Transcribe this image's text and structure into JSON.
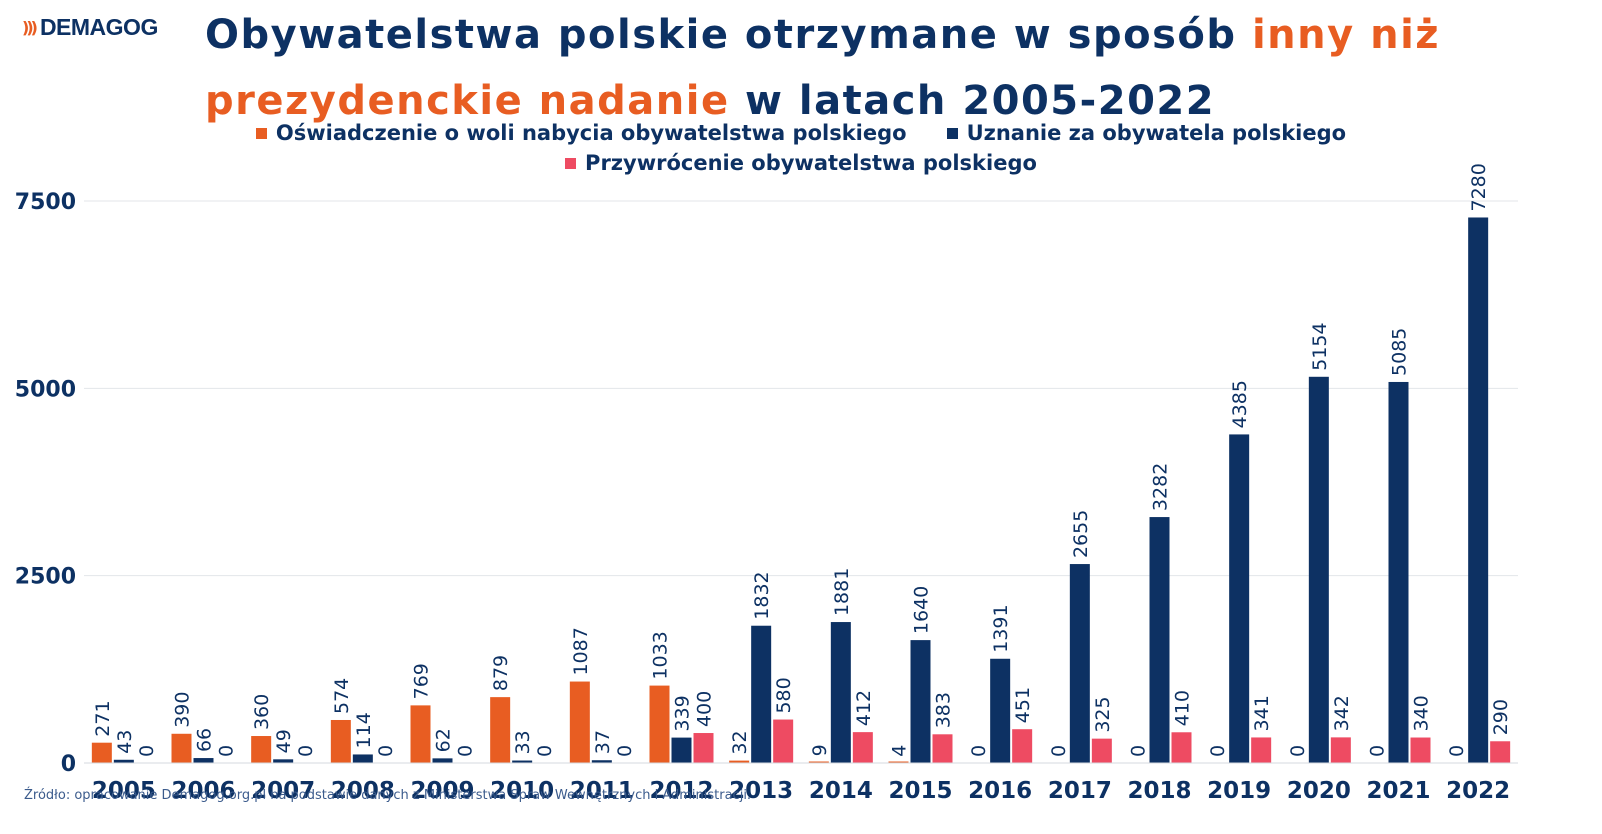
{
  "logo": {
    "mark": ")))",
    "text": "DEMAGOG"
  },
  "title": {
    "part1": "Obywatelstwa polskie otrzymane w sposób ",
    "highlight": "inny niż prezydenckie nadanie",
    "part2": " w latach 2005-2022"
  },
  "colors": {
    "oswiadczenie": "#e85d22",
    "uznanie": "#0d3163",
    "przywrocenie": "#ee4b62",
    "title": "#0d3163",
    "highlight": "#e85d22"
  },
  "legend": [
    {
      "label": "Oświadczenie o woli nabycia obywatelstwa polskiego",
      "color": "#e85d22"
    },
    {
      "label": "Uznanie za obywatela polskiego",
      "color": "#0d3163"
    },
    {
      "label": "Przywrócenie obywatelstwa polskiego",
      "color": "#ee4b62"
    }
  ],
  "chart_data": {
    "type": "bar",
    "title": "Obywatelstwa polskie otrzymane w sposób inny niż prezydenckie nadanie w latach 2005-2022",
    "categories": [
      "2005",
      "2006",
      "2007",
      "2008",
      "2009",
      "2010",
      "2011",
      "2012",
      "2013",
      "2014",
      "2015",
      "2016",
      "2017",
      "2018",
      "2019",
      "2020",
      "2021",
      "2022"
    ],
    "series": [
      {
        "name": "Oświadczenie o woli nabycia obywatelstwa polskiego",
        "color": "#e85d22",
        "values": [
          271,
          390,
          360,
          574,
          769,
          879,
          1087,
          1033,
          32,
          9,
          4,
          0,
          0,
          0,
          0,
          0,
          0,
          0
        ]
      },
      {
        "name": "Uznanie za obywatela polskiego",
        "color": "#0d3163",
        "values": [
          43,
          66,
          49,
          114,
          62,
          33,
          37,
          339,
          1832,
          1881,
          1640,
          1391,
          2655,
          3282,
          4385,
          5154,
          5085,
          7280
        ]
      },
      {
        "name": "Przywrócenie obywatelstwa polskiego",
        "color": "#ee4b62",
        "values": [
          0,
          0,
          0,
          0,
          0,
          0,
          0,
          400,
          580,
          412,
          383,
          451,
          325,
          410,
          341,
          342,
          340,
          290
        ]
      }
    ],
    "yticks": [
      0,
      2500,
      5000,
      7500
    ],
    "ylim": [
      0,
      7500
    ],
    "grid": true,
    "legend_position": "top-center"
  },
  "source": "Źródło: opracowanie Demagog.org.pl na podstawie danych z Ministerstwa Spraw Wewnętrznych i Administracji."
}
